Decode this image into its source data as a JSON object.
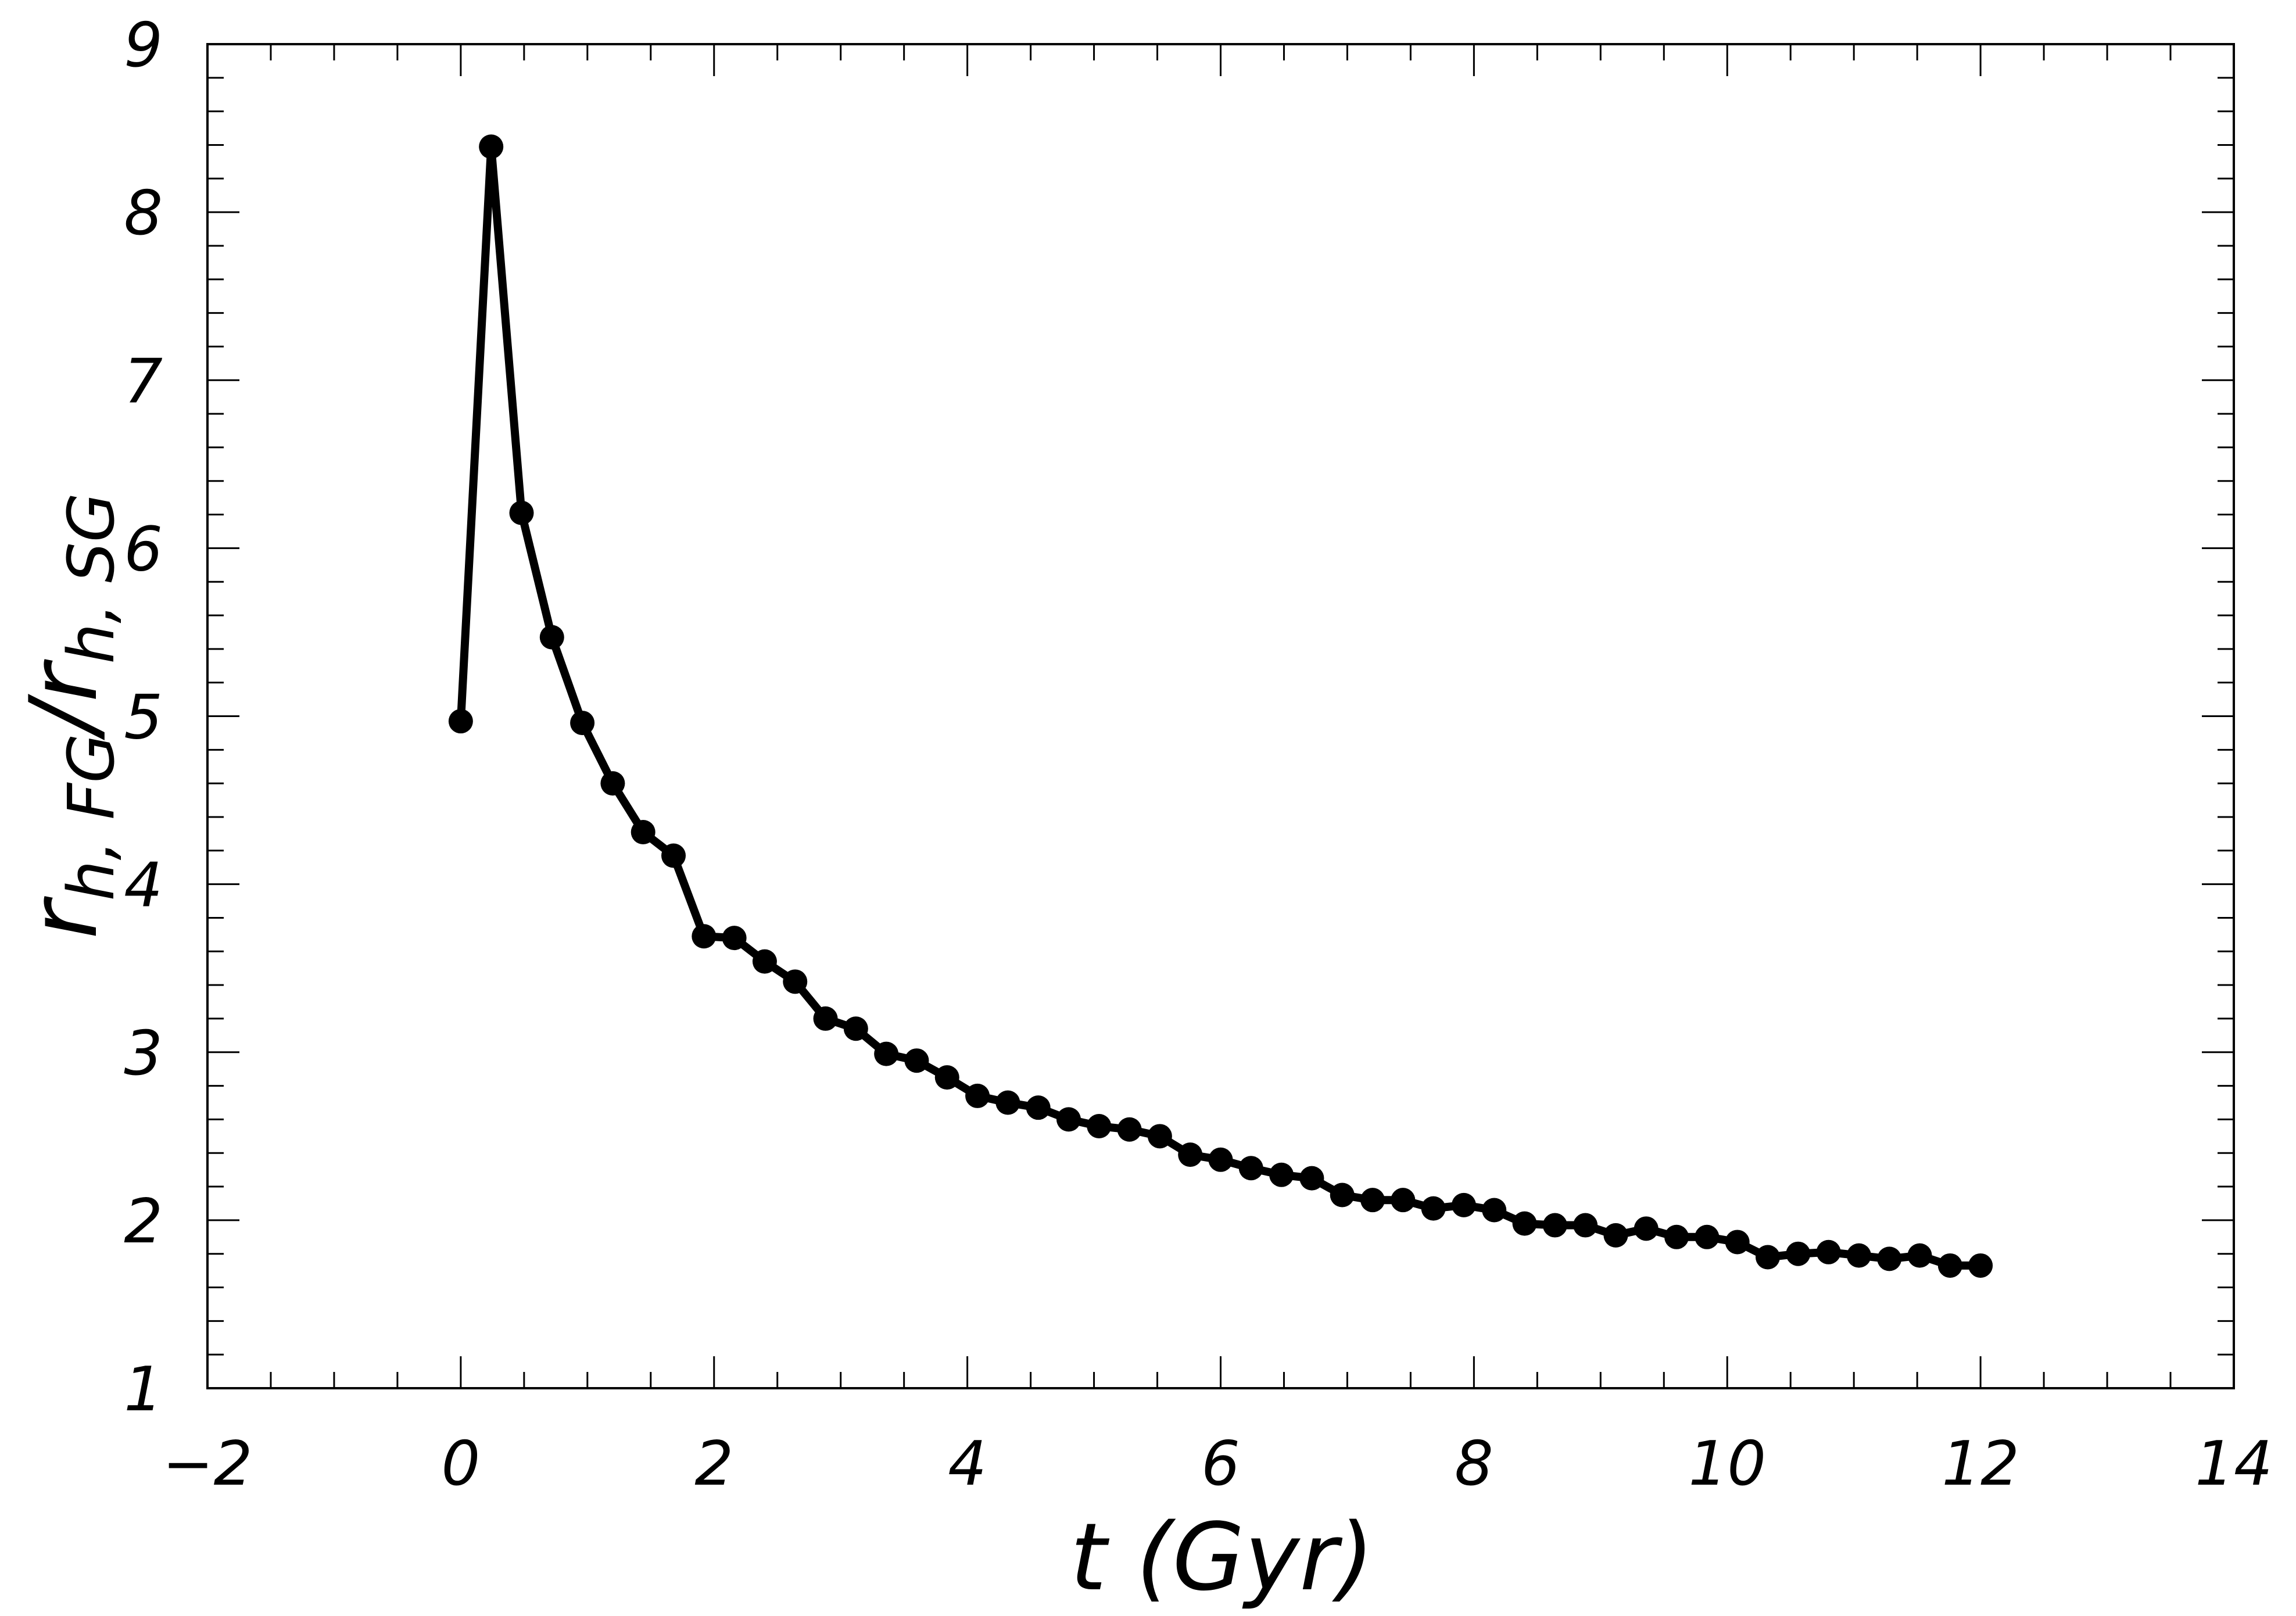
{
  "chart_data": {
    "type": "line",
    "xlabel": "t (Gyr)",
    "ylabel": {
      "base1": "r",
      "sub1": "h, FG",
      "slash": "/",
      "base2": "r",
      "sub2": "h, SG"
    },
    "xlim": [
      -2,
      14
    ],
    "ylim": [
      1,
      9
    ],
    "x_ticks": [
      "−2",
      "0",
      "2",
      "4",
      "6",
      "8",
      "10",
      "12",
      "14"
    ],
    "y_ticks": [
      "1",
      "2",
      "3",
      "4",
      "5",
      "6",
      "7",
      "8",
      "9"
    ],
    "grid": false,
    "marker": "circle",
    "line_color": "#000000",
    "series": [
      {
        "x": [
          0.0,
          0.24,
          0.48,
          0.72,
          0.96,
          1.2,
          1.44,
          1.68,
          1.92,
          2.16,
          2.4,
          2.64,
          2.88,
          3.12,
          3.36,
          3.6,
          3.84,
          4.08,
          4.32,
          4.56,
          4.8,
          5.04,
          5.28,
          5.52,
          5.76,
          6.0,
          6.24,
          6.48,
          6.72,
          6.96,
          7.2,
          7.44,
          7.68,
          7.92,
          8.16,
          8.4,
          8.64,
          8.88,
          9.12,
          9.36,
          9.6,
          9.84,
          10.08,
          10.32,
          10.56,
          10.8,
          11.04,
          11.28,
          11.52,
          11.76,
          12.0
        ],
        "y": [
          4.97,
          8.39,
          6.21,
          5.47,
          4.96,
          4.6,
          4.31,
          4.17,
          3.69,
          3.68,
          3.54,
          3.42,
          3.2,
          3.14,
          2.99,
          2.95,
          2.85,
          2.74,
          2.7,
          2.67,
          2.6,
          2.56,
          2.54,
          2.5,
          2.39,
          2.36,
          2.31,
          2.27,
          2.25,
          2.15,
          2.12,
          2.12,
          2.07,
          2.09,
          2.06,
          1.98,
          1.97,
          1.97,
          1.91,
          1.95,
          1.9,
          1.9,
          1.87,
          1.78,
          1.8,
          1.81,
          1.79,
          1.77,
          1.79,
          1.73,
          1.73
        ]
      }
    ]
  }
}
